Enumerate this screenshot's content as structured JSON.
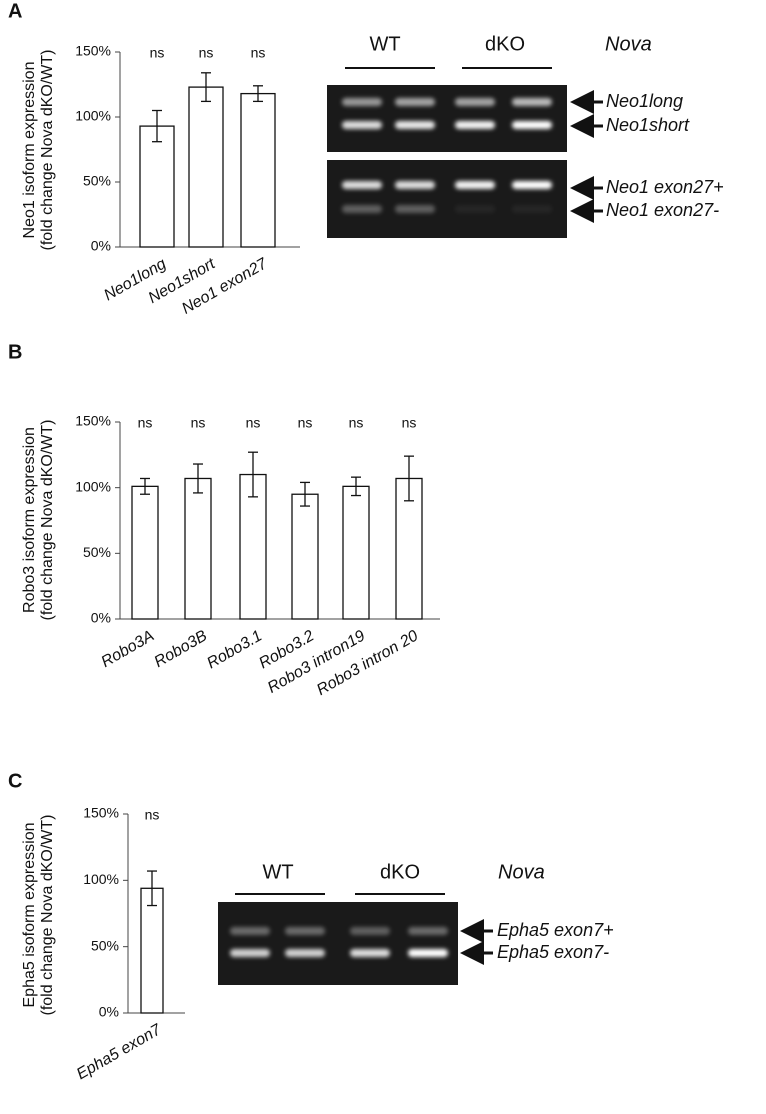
{
  "chart_data": [
    {
      "type": "bar",
      "panel": "A",
      "ylabel": [
        "Neo1 isoform expression",
        "(fold change Nova dKO/WT)"
      ],
      "categories": [
        "Neo1long",
        "Neo1short",
        "Neo1 exon27"
      ],
      "values": [
        93,
        123,
        118
      ],
      "errors": [
        12,
        11,
        6
      ],
      "annotations": [
        "ns",
        "ns",
        "ns"
      ],
      "color": "#ffffff",
      "ylim": [
        0,
        150
      ],
      "yticks": [
        {
          "value": 0,
          "label": "0%"
        },
        {
          "value": 50,
          "label": "50%"
        },
        {
          "value": 100,
          "label": "100%"
        },
        {
          "value": 150,
          "label": "150%"
        }
      ]
    },
    {
      "type": "bar",
      "panel": "B",
      "ylabel": [
        "Robo3 isoform expression",
        "(fold change Nova dKO/WT)"
      ],
      "categories": [
        "Robo3A",
        "Robo3B",
        "Robo3.1",
        "Robo3.2",
        "Robo3 intron19",
        "Robo3 intron 20"
      ],
      "values": [
        101,
        107,
        110,
        95,
        101,
        107
      ],
      "errors": [
        6,
        11,
        17,
        9,
        7,
        17
      ],
      "annotations": [
        "ns",
        "ns",
        "ns",
        "ns",
        "ns",
        "ns"
      ],
      "color": "#ffffff",
      "ylim": [
        0,
        150
      ],
      "yticks": [
        {
          "value": 0,
          "label": "0%"
        },
        {
          "value": 50,
          "label": "50%"
        },
        {
          "value": 100,
          "label": "100%"
        },
        {
          "value": 150,
          "label": "150%"
        }
      ]
    },
    {
      "type": "bar",
      "panel": "C",
      "ylabel": [
        "Epha5 isoform expression",
        "(fold change Nova dKO/WT)"
      ],
      "categories": [
        "Epha5 exon7"
      ],
      "values": [
        94
      ],
      "errors": [
        13
      ],
      "annotations": [
        "ns"
      ],
      "color": "#ffffff",
      "ylim": [
        0,
        150
      ],
      "yticks": [
        {
          "value": 0,
          "label": "0%"
        },
        {
          "value": 50,
          "label": "50%"
        },
        {
          "value": 100,
          "label": "100%"
        },
        {
          "value": 150,
          "label": "150%"
        }
      ]
    }
  ],
  "gels": [
    {
      "lanes": [
        "WT",
        "dKO"
      ],
      "species": "Nova",
      "bands": [
        "Neo1long",
        "Neo1short",
        "Neo1 exon27+",
        "Neo1 exon27-"
      ]
    },
    {
      "lanes": [
        "WT",
        "dKO"
      ],
      "species": "Nova",
      "bands": [
        "Epha5 exon7+",
        "Epha5 exon7-"
      ]
    }
  ]
}
